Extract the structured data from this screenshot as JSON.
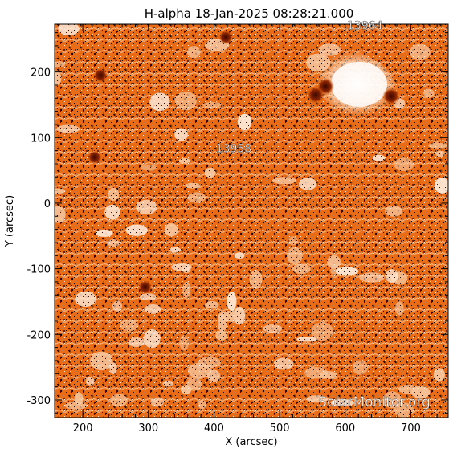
{
  "chart_data": {
    "type": "heatmap",
    "title": "H-alpha 18-Jan-2025 08:28:21.000",
    "xlabel": "X (arcsec)",
    "ylabel": "Y (arcsec)",
    "xlim": [
      157,
      757
    ],
    "ylim": [
      -327,
      273
    ],
    "x_ticks": [
      200,
      300,
      400,
      500,
      600,
      700
    ],
    "y_ticks": [
      -300,
      -200,
      -100,
      0,
      100,
      200
    ],
    "x_tick_labels": [
      "200",
      "300",
      "400",
      "500",
      "600",
      "700"
    ],
    "y_tick_labels": [
      "-300",
      "-200",
      "-100",
      "0",
      "100",
      "200"
    ],
    "grid": false,
    "colormap": [
      "#000000",
      "#7a1c00",
      "#e8660a",
      "#f28a3a",
      "#fbd2ad",
      "#ffffff"
    ],
    "regions": [
      {
        "label": "13958",
        "x": 430,
        "y": 78
      },
      {
        "label": "13964",
        "x": 630,
        "y": 265
      }
    ],
    "features": [
      {
        "name": "bright-plage-ar13964",
        "x": 615,
        "y": 175,
        "level": "bright"
      },
      {
        "name": "dark-spot-a",
        "x": 570,
        "y": 178,
        "level": "dark"
      },
      {
        "name": "dark-spot-b",
        "x": 555,
        "y": 165,
        "level": "dark"
      },
      {
        "name": "dark-spot-c",
        "x": 670,
        "y": 163,
        "level": "dark"
      },
      {
        "name": "filament-west",
        "x": 218,
        "y": 70,
        "level": "dark"
      },
      {
        "name": "filament-north",
        "x": 227,
        "y": 195,
        "level": "dark"
      },
      {
        "name": "filament-top",
        "x": 418,
        "y": 253,
        "level": "dark"
      },
      {
        "name": "filament-south",
        "x": 295,
        "y": -128,
        "level": "dark"
      }
    ]
  },
  "watermark": "SolarMonitor.org"
}
